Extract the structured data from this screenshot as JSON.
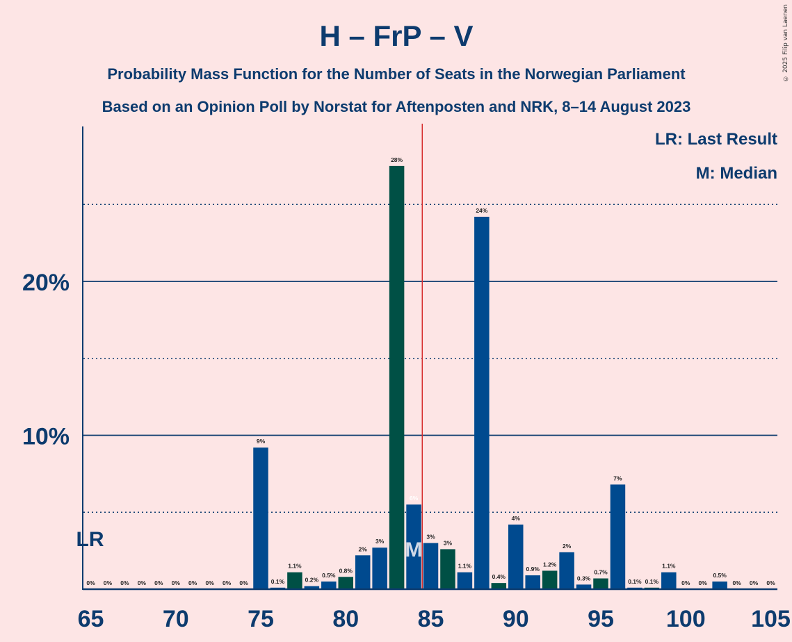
{
  "header": {
    "title": "H – FrP – V",
    "subtitle1": "Probability Mass Function for the Number of Seats in the Norwegian Parliament",
    "subtitle2": "Based on an Opinion Poll by Norstat for Aftenposten and NRK, 8–14 August 2023",
    "copyright": "© 2025 Filip van Laenen"
  },
  "legend": {
    "last_result": "LR: Last Result",
    "median": "M: Median"
  },
  "markers": {
    "lr_label": "LR",
    "median_label": "M"
  },
  "colors": {
    "background": "#fde5e5",
    "bar_blue": "#004a8f",
    "bar_green": "#005045",
    "text_navy": "#0d3b6e",
    "majority_line": "#d62d2d"
  },
  "chart_data": {
    "type": "bar",
    "title": "H – FrP – V",
    "xlabel": "",
    "ylabel": "",
    "xlim": [
      65,
      105
    ],
    "ylim": [
      0,
      30
    ],
    "y_ticks": [
      {
        "value": 10,
        "label": "10%"
      },
      {
        "value": 20,
        "label": "20%"
      }
    ],
    "y_dotted_gridlines": [
      5,
      15,
      25
    ],
    "x_ticks": [
      65,
      70,
      75,
      80,
      85,
      90,
      95,
      100,
      105
    ],
    "last_result_seat": 65,
    "median_seat": 84,
    "majority_line_x": 84.5,
    "seats": [
      65,
      66,
      67,
      68,
      69,
      70,
      71,
      72,
      73,
      74,
      75,
      76,
      77,
      78,
      79,
      80,
      81,
      82,
      83,
      84,
      85,
      86,
      87,
      88,
      89,
      90,
      91,
      92,
      93,
      94,
      95,
      96,
      97,
      98,
      99,
      100,
      101,
      102,
      103,
      104,
      105
    ],
    "values": [
      0,
      0,
      0,
      0,
      0,
      0,
      0,
      0,
      0,
      0,
      9.2,
      0.1,
      1.1,
      0.2,
      0.5,
      0.8,
      2.2,
      2.7,
      27.5,
      5.5,
      3.0,
      2.6,
      1.1,
      24.2,
      0.4,
      4.2,
      0.9,
      1.2,
      2.4,
      0.3,
      0.7,
      6.8,
      0.1,
      0.1,
      1.1,
      0,
      0,
      0.5,
      0,
      0,
      0
    ],
    "labels": [
      "0%",
      "0%",
      "0%",
      "0%",
      "0%",
      "0%",
      "0%",
      "0%",
      "0%",
      "0%",
      "9%",
      "0.1%",
      "1.1%",
      "0.2%",
      "0.5%",
      "0.8%",
      "2%",
      "3%",
      "28%",
      "6%",
      "3%",
      "3%",
      "1.1%",
      "24%",
      "0.4%",
      "4%",
      "0.9%",
      "1.2%",
      "2%",
      "0.3%",
      "0.7%",
      "7%",
      "0.1%",
      "0.1%",
      "1.1%",
      "0%",
      "0%",
      "0.5%",
      "0%",
      "0%",
      "0%"
    ],
    "colors": [
      "blue",
      "blue",
      "blue",
      "blue",
      "blue",
      "blue",
      "blue",
      "blue",
      "blue",
      "blue",
      "blue",
      "blue",
      "green",
      "blue",
      "blue",
      "green",
      "blue",
      "blue",
      "green",
      "blue",
      "blue",
      "green",
      "blue",
      "blue",
      "green",
      "blue",
      "blue",
      "green",
      "blue",
      "blue",
      "green",
      "blue",
      "blue",
      "green",
      "blue",
      "blue",
      "green",
      "blue",
      "blue",
      "green",
      "blue"
    ]
  }
}
